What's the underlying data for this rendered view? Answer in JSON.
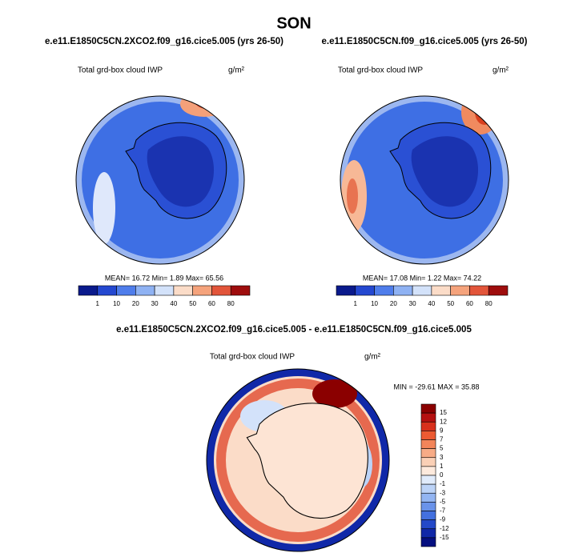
{
  "title": "SON",
  "panels": [
    {
      "title": "e.e11.E1850C5CN.2XCO2.f09_g16.cice5.005 (yrs 26-50)",
      "variable": "Total grd-box cloud IWP",
      "units": "g/m²",
      "stats": "MEAN=  16.72  Min=   1.89  Max=   65.56",
      "colorbar": {
        "labels": [
          1,
          10,
          20,
          30,
          40,
          50,
          60,
          80
        ],
        "colors": [
          "#0a1a8c",
          "#2448d0",
          "#4f7deb",
          "#8fb2f3",
          "#d3e2fa",
          "#fbdcc8",
          "#f5a37c",
          "#e2553a",
          "#9e0d0d"
        ]
      }
    },
    {
      "title": "e.e11.E1850C5CN.f09_g16.cice5.005 (yrs 26-50)",
      "variable": "Total grd-box cloud IWP",
      "units": "g/m²",
      "stats": "MEAN=  17.08  Min=   1.22  Max=   74.22",
      "colorbar": {
        "labels": [
          1,
          10,
          20,
          30,
          40,
          50,
          60,
          80
        ],
        "colors": [
          "#0a1a8c",
          "#2448d0",
          "#4f7deb",
          "#8fb2f3",
          "#d3e2fa",
          "#fbdcc8",
          "#f5a37c",
          "#e2553a",
          "#9e0d0d"
        ]
      }
    }
  ],
  "diff": {
    "title": "e.e11.E1850C5CN.2XCO2.f09_g16.cice5.005 - e.e11.E1850C5CN.f09_g16.cice5.005",
    "variable": "Total grd-box cloud IWP",
    "units": "g/m²",
    "stats": "MIN = -29.61  MAX =  35.88",
    "colorbar": {
      "labels": [
        15,
        12,
        9,
        7,
        5,
        3,
        1,
        0,
        -1,
        -3,
        -5,
        -7,
        -9,
        -12,
        -15
      ],
      "colors": [
        "#8b0000",
        "#b51010",
        "#d8301c",
        "#ec5a32",
        "#f3855a",
        "#f7ab86",
        "#fad0b6",
        "#fdeadd",
        "#e0ebfb",
        "#bcd3f7",
        "#93b5f2",
        "#6a93ea",
        "#4370df",
        "#2449c8",
        "#1028a8",
        "#050f80"
      ]
    }
  }
}
